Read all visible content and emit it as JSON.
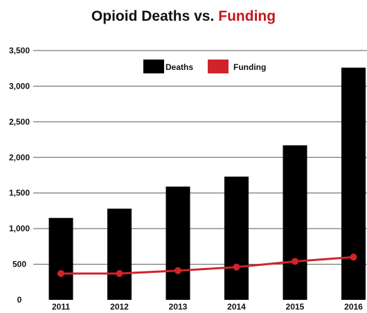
{
  "chart_data": {
    "type": "bar",
    "title_part1": "Opioid Deaths vs.",
    "title_part2": "Funding",
    "categories": [
      "2011",
      "2012",
      "2013",
      "2014",
      "2015",
      "2016"
    ],
    "series": [
      {
        "name": "Deaths",
        "type": "bar",
        "values": [
          1150,
          1280,
          1590,
          1730,
          2170,
          3260
        ]
      },
      {
        "name": "Funding",
        "type": "line",
        "values": [
          370,
          370,
          410,
          460,
          540,
          600
        ]
      }
    ],
    "y_ticks": [
      "0",
      "500",
      "1,000",
      "1,500",
      "2,000",
      "2,500",
      "3,000",
      "3,500"
    ],
    "y_tick_values": [
      0,
      500,
      1000,
      1500,
      2000,
      2500,
      3000,
      3500
    ],
    "ylim": [
      0,
      3500
    ],
    "grid": true,
    "legend_position": "top-center",
    "colors": {
      "bar": "#000000",
      "line": "#d0232a",
      "title_accent": "#c4161c",
      "grid": "#555555"
    }
  }
}
